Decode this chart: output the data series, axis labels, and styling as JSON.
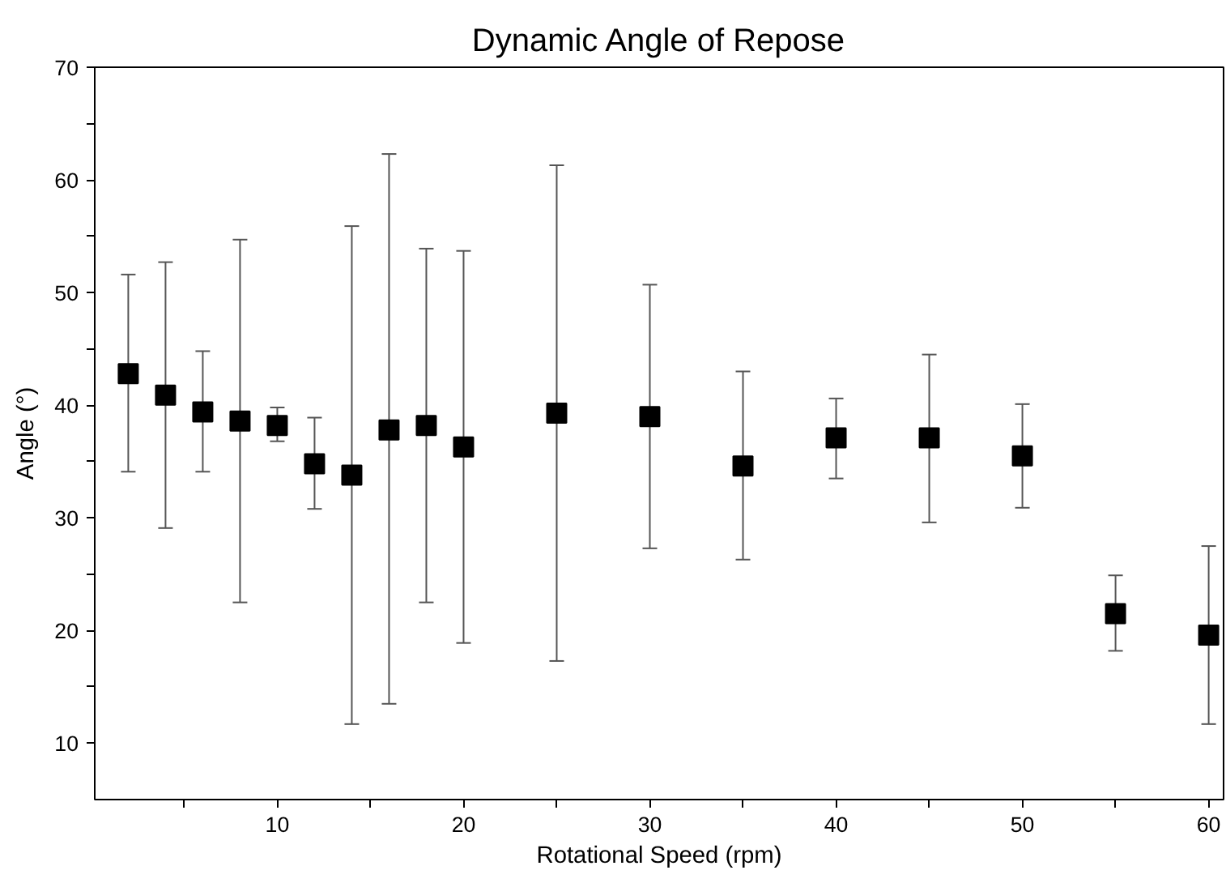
{
  "chart_data": {
    "type": "scatter",
    "title": "Dynamic Angle of Repose",
    "xlabel": "Rotational Speed (rpm)",
    "ylabel": "Angle (°)",
    "x": [
      2,
      4,
      6,
      8,
      10,
      12,
      14,
      16,
      18,
      20,
      25,
      30,
      35,
      40,
      45,
      50,
      55,
      60
    ],
    "series": [
      {
        "color": "#000000",
        "values": [
          42.8,
          40.9,
          39.4,
          38.6,
          38.2,
          34.8,
          33.8,
          37.8,
          38.2,
          36.3,
          39.3,
          39.0,
          34.6,
          37.1,
          37.1,
          35.5,
          21.5,
          19.6
        ],
        "errors": [
          [
            34.1,
            51.6
          ],
          [
            29.1,
            52.7
          ],
          [
            34.1,
            44.8
          ],
          [
            22.5,
            54.7
          ],
          [
            36.8,
            39.8
          ],
          [
            30.8,
            38.9
          ],
          [
            11.7,
            55.9
          ],
          [
            13.5,
            62.3
          ],
          [
            22.5,
            53.9
          ],
          [
            18.9,
            53.7
          ],
          [
            17.3,
            61.3
          ],
          [
            27.3,
            50.7
          ],
          [
            26.3,
            43.0
          ],
          [
            33.5,
            40.6
          ],
          [
            29.6,
            44.5
          ],
          [
            30.9,
            40.1
          ],
          [
            18.2,
            24.9
          ],
          [
            11.7,
            27.5
          ]
        ]
      }
    ],
    "marker": "square",
    "grid": false,
    "xlim": [
      0.2,
      60.8
    ],
    "ylim": [
      5,
      70
    ],
    "xticks": [
      {
        "value": 5,
        "label": null
      },
      10,
      {
        "value": 15,
        "label": null
      },
      20,
      {
        "value": 25,
        "label": null
      },
      30,
      {
        "value": 35,
        "label": null
      },
      40,
      {
        "value": 45,
        "label": null
      },
      50,
      {
        "value": 55,
        "label": null
      },
      60
    ],
    "yticks": [
      10,
      {
        "value": 15,
        "label": null
      },
      20,
      {
        "value": 25,
        "label": null
      },
      30,
      {
        "value": 35,
        "label": null
      },
      40,
      {
        "value": 45,
        "label": null
      },
      50,
      {
        "value": 55,
        "label": null
      },
      60,
      {
        "value": 65,
        "label": null
      },
      70
    ]
  }
}
